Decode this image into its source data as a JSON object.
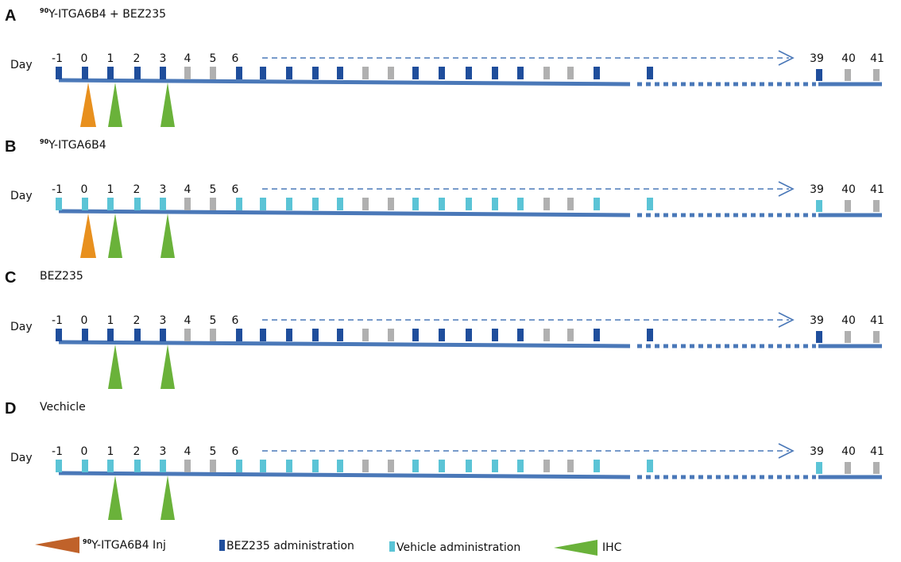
{
  "colors": {
    "bez": "#1f4e9c",
    "vehicle": "#5bc4d6",
    "gray": "#b0b0b0",
    "timeline": "#4a78b8",
    "injection": "#e8901e",
    "injection_legend": "#c0622a",
    "ihc": "#6ab23a"
  },
  "day_label": "Day",
  "day_ticks": [
    "-1",
    "0",
    "1",
    "2",
    "3",
    "4",
    "5",
    "6",
    "39",
    "40",
    "41"
  ],
  "panels": [
    {
      "letter": "A",
      "title_sup": "90",
      "title": "Y-ITGA6B4 + BEZ235",
      "admin": "bez",
      "injection": true,
      "ihc": true
    },
    {
      "letter": "B",
      "title_sup": "90",
      "title": "Y-ITGA6B4",
      "admin": "vehicle",
      "injection": true,
      "ihc": true
    },
    {
      "letter": "C",
      "title_sup": "",
      "title": "BEZ235",
      "admin": "bez",
      "injection": false,
      "ihc": true
    },
    {
      "letter": "D",
      "title_sup": "",
      "title": "Vechicle",
      "admin": "vehicle",
      "injection": false,
      "ihc": true
    }
  ],
  "schedule": [
    "admin",
    "admin",
    "admin",
    "admin",
    "admin",
    "gray",
    "gray",
    "admin",
    "admin",
    "admin",
    "admin",
    "admin",
    "gray",
    "gray",
    "admin",
    "admin",
    "admin",
    "admin",
    "admin",
    "gray",
    "gray",
    "admin",
    "admin"
  ],
  "schedule_end": [
    "admin",
    "gray",
    "gray"
  ],
  "legend": {
    "injection_sup": "90",
    "injection_label": "Y-ITGA6B4 Inj",
    "bez_label": "BEZ235 administration",
    "vehicle_label": "Vehicle administration",
    "ihc_label": "IHC"
  }
}
